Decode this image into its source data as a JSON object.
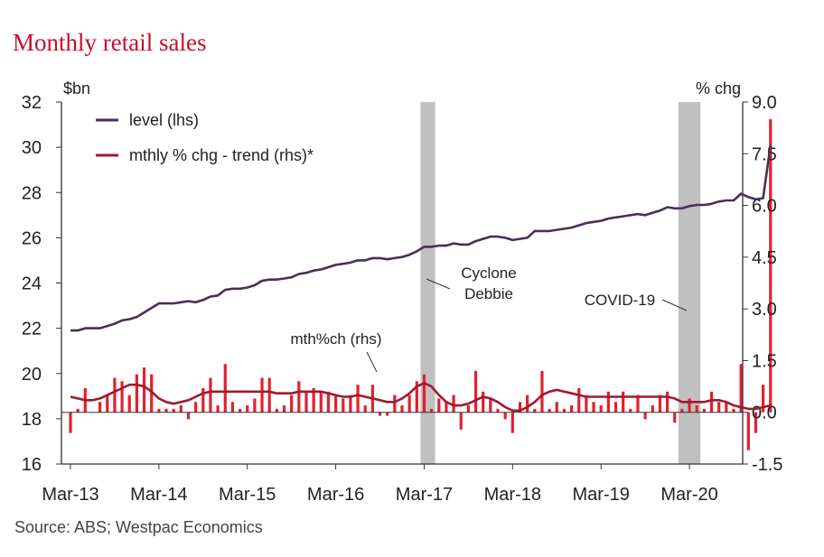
{
  "colors": {
    "title": "#c8102e",
    "level": "#4a2e57",
    "bars": "#e3202f",
    "trend": "#9e1b2f",
    "shade": "#c0c0c0",
    "axis": "#333333",
    "text": "#222222"
  },
  "chart_data": {
    "type": "line",
    "title": "Monthly retail sales",
    "source": "Source: ABS; Westpac Economics",
    "y_left": {
      "label": "$bn",
      "range": [
        16,
        32
      ],
      "ticks": [
        "16",
        "18",
        "20",
        "22",
        "24",
        "26",
        "28",
        "30",
        "32"
      ]
    },
    "y_right": {
      "label": "% chg",
      "range": [
        -1.5,
        9.0
      ],
      "ticks": [
        "-1.5",
        "0.0",
        "1.5",
        "3.0",
        "4.5",
        "6.0",
        "7.5",
        "9.0"
      ]
    },
    "x_ticks": [
      "Mar-13",
      "Mar-14",
      "Mar-15",
      "Mar-16",
      "Mar-17",
      "Mar-18",
      "Mar-19",
      "Mar-20"
    ],
    "x_start": "Mar-13",
    "legend": {
      "position": "top-left",
      "entries": [
        {
          "name": "level (lhs)",
          "color": "#4a2e57"
        },
        {
          "name": "mthly % chg - trend (rhs)*",
          "color": "#9e1b2f"
        }
      ]
    },
    "shaded_periods": [
      {
        "from": "Mar-17",
        "to": "Apr-17",
        "label": ""
      },
      {
        "from": "Feb-20",
        "to": "Apr-20",
        "label": ""
      }
    ],
    "annotations": [
      {
        "text": "Cyclone",
        "at": "Apr-17"
      },
      {
        "text": "Debbie",
        "at": "Apr-17"
      },
      {
        "text": "COVID-19",
        "at": "Mar-20"
      },
      {
        "text": "mth%ch (rhs)",
        "at": "Jul-16"
      }
    ],
    "series": [
      {
        "name": "level (lhs)",
        "axis": "left",
        "values": [
          21.9,
          21.9,
          22.0,
          22.0,
          22.0,
          22.1,
          22.2,
          22.35,
          22.4,
          22.5,
          22.7,
          22.9,
          23.1,
          23.1,
          23.1,
          23.15,
          23.2,
          23.15,
          23.25,
          23.4,
          23.45,
          23.7,
          23.75,
          23.75,
          23.8,
          23.9,
          24.1,
          24.15,
          24.15,
          24.2,
          24.25,
          24.4,
          24.45,
          24.55,
          24.6,
          24.7,
          24.8,
          24.85,
          24.9,
          25.0,
          25.0,
          25.1,
          25.1,
          25.05,
          25.1,
          25.15,
          25.25,
          25.4,
          25.6,
          25.6,
          25.65,
          25.65,
          25.75,
          25.7,
          25.7,
          25.85,
          25.95,
          26.05,
          26.05,
          26.0,
          25.9,
          25.95,
          26.0,
          26.3,
          26.3,
          26.3,
          26.35,
          26.4,
          26.45,
          26.55,
          26.65,
          26.7,
          26.75,
          26.85,
          26.9,
          26.95,
          27.0,
          27.05,
          27.0,
          27.1,
          27.2,
          27.35,
          27.3,
          27.3,
          27.4,
          27.45,
          27.45,
          27.5,
          27.6,
          27.65,
          27.65,
          27.95,
          27.8,
          27.7,
          27.75,
          30.1
        ]
      },
      {
        "name": "mth%ch (rhs)",
        "axis": "right",
        "values": [
          -0.6,
          0.1,
          0.7,
          0.0,
          0.3,
          0.5,
          1.0,
          0.9,
          0.5,
          1.1,
          1.3,
          1.1,
          0.1,
          0.1,
          0.1,
          0.2,
          -0.2,
          0.3,
          0.7,
          1.0,
          0.2,
          1.4,
          0.3,
          0.1,
          0.2,
          0.4,
          1.0,
          1.0,
          0.1,
          0.2,
          0.5,
          0.9,
          0.6,
          0.7,
          0.6,
          0.6,
          0.5,
          0.4,
          0.5,
          0.8,
          0.2,
          0.8,
          -0.1,
          -0.1,
          0.5,
          0.2,
          0.5,
          0.9,
          1.1,
          0.1,
          0.4,
          0.3,
          0.5,
          -0.5,
          0.2,
          1.2,
          0.6,
          0.4,
          0.1,
          -0.2,
          -0.6,
          0.3,
          0.5,
          0.1,
          1.2,
          0.1,
          0.3,
          0.1,
          0.2,
          0.7,
          0.5,
          0.3,
          0.2,
          0.6,
          0.3,
          0.6,
          0.1,
          0.5,
          -0.2,
          0.2,
          0.5,
          0.6,
          -0.3,
          0.1,
          0.4,
          0.2,
          0.1,
          0.6,
          0.3,
          0.3,
          0.1,
          1.4,
          -1.1,
          -0.6,
          0.8,
          8.5
        ]
      },
      {
        "name": "mthly % chg - trend (rhs)*",
        "axis": "right",
        "values": [
          0.45,
          0.4,
          0.35,
          0.35,
          0.4,
          0.5,
          0.6,
          0.7,
          0.8,
          0.8,
          0.75,
          0.6,
          0.4,
          0.3,
          0.25,
          0.3,
          0.35,
          0.45,
          0.55,
          0.6,
          0.6,
          0.6,
          0.6,
          0.6,
          0.6,
          0.6,
          0.6,
          0.6,
          0.55,
          0.55,
          0.55,
          0.6,
          0.6,
          0.6,
          0.6,
          0.55,
          0.5,
          0.45,
          0.45,
          0.5,
          0.45,
          0.4,
          0.35,
          0.3,
          0.3,
          0.4,
          0.55,
          0.75,
          0.85,
          0.75,
          0.5,
          0.3,
          0.2,
          0.2,
          0.25,
          0.35,
          0.45,
          0.4,
          0.3,
          0.15,
          0.05,
          0.05,
          0.15,
          0.3,
          0.5,
          0.6,
          0.65,
          0.6,
          0.55,
          0.5,
          0.45,
          0.45,
          0.45,
          0.45,
          0.45,
          0.45,
          0.45,
          0.45,
          0.45,
          0.45,
          0.45,
          0.45,
          0.4,
          0.3,
          0.3,
          0.3,
          0.3,
          0.35,
          0.35,
          0.3,
          0.2,
          0.15,
          0.1,
          0.1,
          0.15,
          0.2
        ]
      }
    ]
  }
}
